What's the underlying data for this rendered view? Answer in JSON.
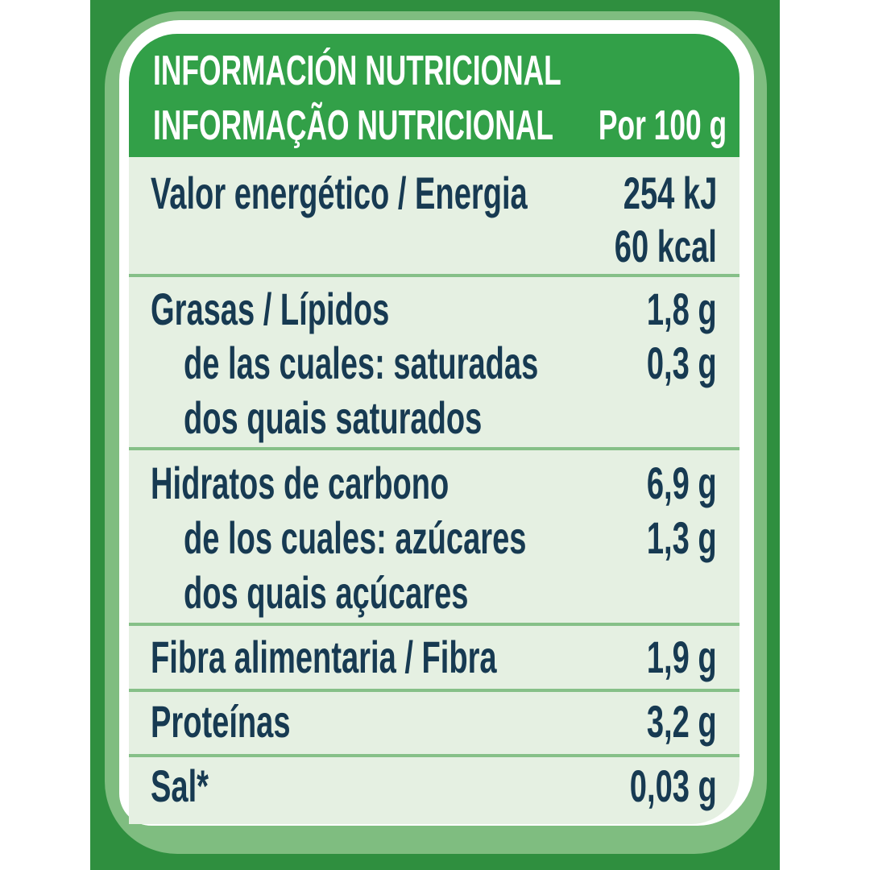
{
  "header": {
    "title_es": "INFORMACIÓN NUTRICIONAL",
    "title_pt": "INFORMAÇÃO NUTRICIONAL",
    "per": "Por 100 g"
  },
  "rows": [
    {
      "label": "Valor energético / Energia",
      "value": "254 kJ",
      "value2": "60 kcal"
    },
    {
      "label": "Grasas / Lípidos",
      "value": "1,8 g"
    },
    {
      "label": "de las cuales: saturadas",
      "value": "0,3 g",
      "label2": "dos quais saturados"
    },
    {
      "label": "Hidratos de carbono",
      "value": "6,9 g"
    },
    {
      "label": "de los cuales: azúcares",
      "value": "1,3 g",
      "label2": "dos quais açúcares"
    },
    {
      "label": "Fibra alimentaria / Fibra",
      "value": "1,9 g"
    },
    {
      "label": "Proteínas",
      "value": "3,2 g"
    },
    {
      "label": "Sal*",
      "value": "0,03 g"
    }
  ],
  "colors": {
    "brand_green": "#2f8f3f",
    "header_green": "#32a048",
    "text": "#173a52",
    "panel": "#e5f0e2"
  }
}
